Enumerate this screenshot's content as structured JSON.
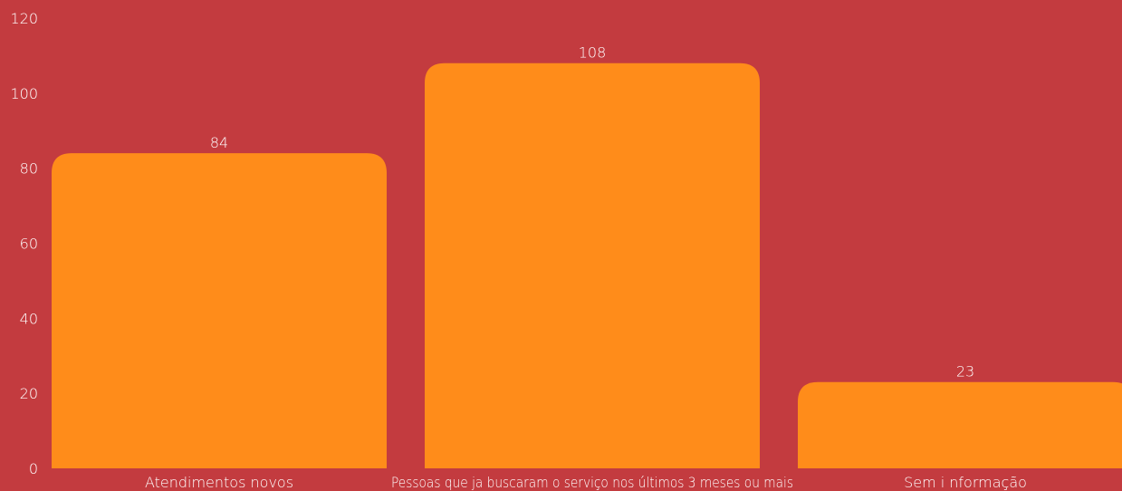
{
  "chart_data": {
    "type": "bar",
    "categories": [
      "Atendimentos novos",
      "Pessoas que ja buscaram o serviço nos últimos 3 meses ou mais",
      "Sem i nformação"
    ],
    "values": [
      84,
      108,
      23
    ],
    "data_labels": [
      "84",
      "108",
      "23"
    ],
    "ylim": [
      0,
      120
    ],
    "yticks": [
      0,
      20,
      40,
      60,
      80,
      100,
      120
    ],
    "ytick_labels": [
      "0",
      "20",
      "40",
      "60",
      "80",
      "100",
      "120"
    ],
    "grid": false,
    "legend": "none",
    "colors": {
      "background": "#c33b3f",
      "bar": "#ff8c1a",
      "text": "#ffffff"
    }
  }
}
